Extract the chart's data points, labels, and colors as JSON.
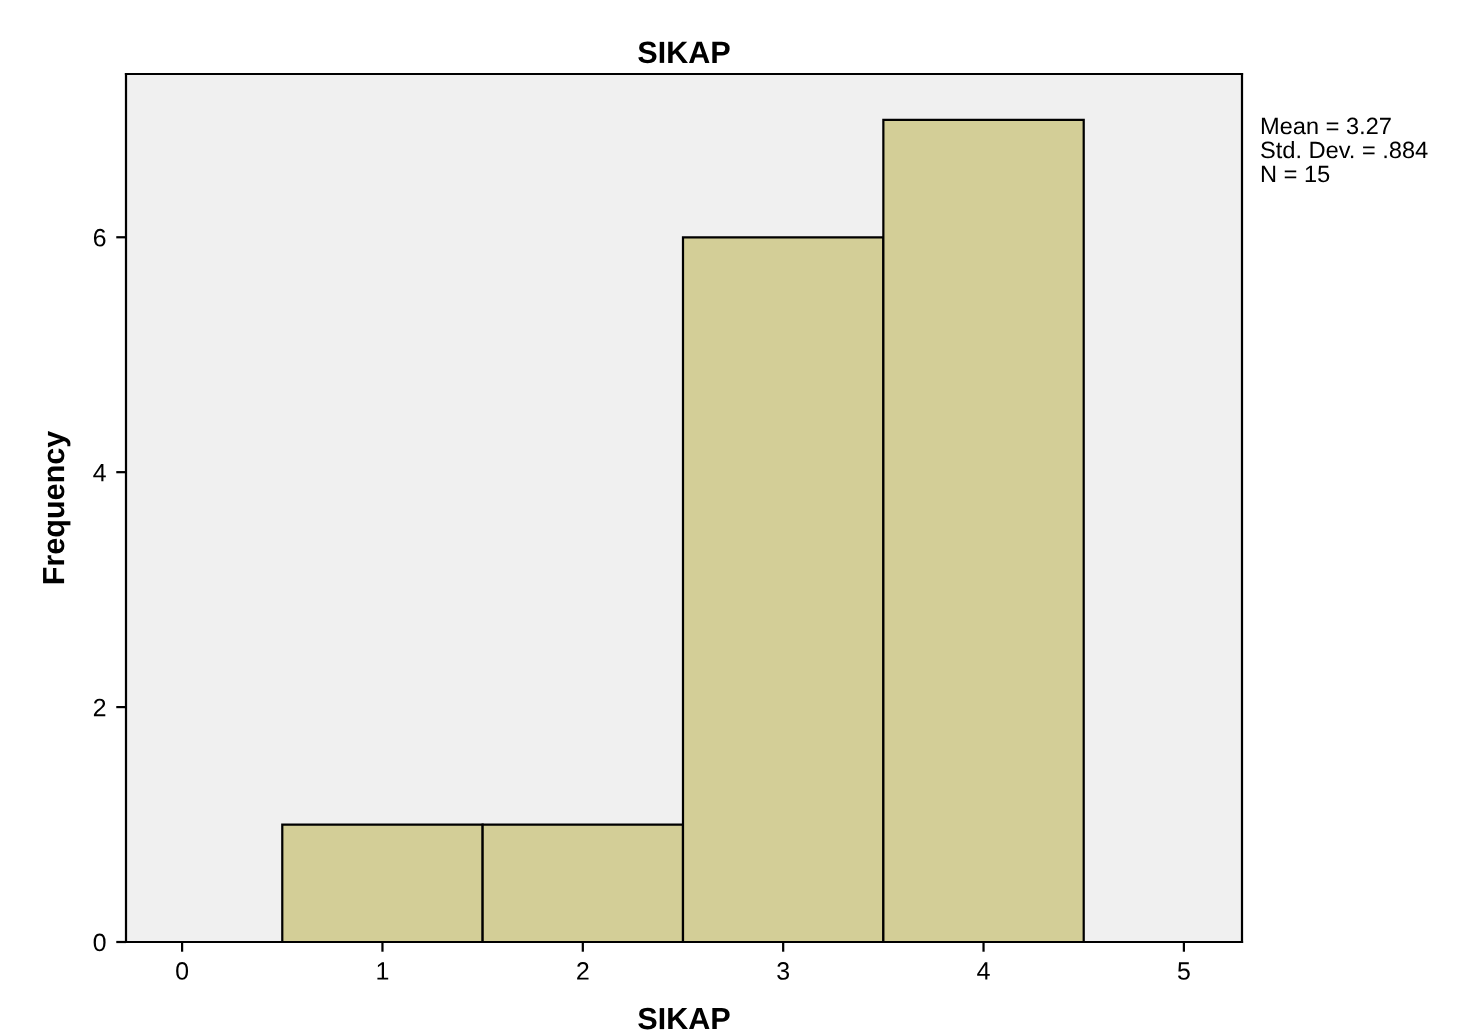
{
  "chart_data": {
    "type": "histogram",
    "title": "SIKAP",
    "xlabel": "SIKAP",
    "ylabel": "Frequency",
    "bins": [
      0.5,
      1.5,
      2.5,
      3.5,
      4.5
    ],
    "values": [
      1,
      1,
      6,
      7
    ],
    "color": "#d3ce97",
    "xlim": [
      -0.28,
      5.29
    ],
    "xticks": [
      0,
      1,
      2,
      3,
      4,
      5
    ],
    "ylim": [
      0,
      7.39
    ],
    "yticks": [
      0,
      2,
      4,
      6
    ],
    "grid": false,
    "annotations": [
      "Mean = 3.27",
      "Std. Dev. = .884",
      "N = 15"
    ]
  }
}
